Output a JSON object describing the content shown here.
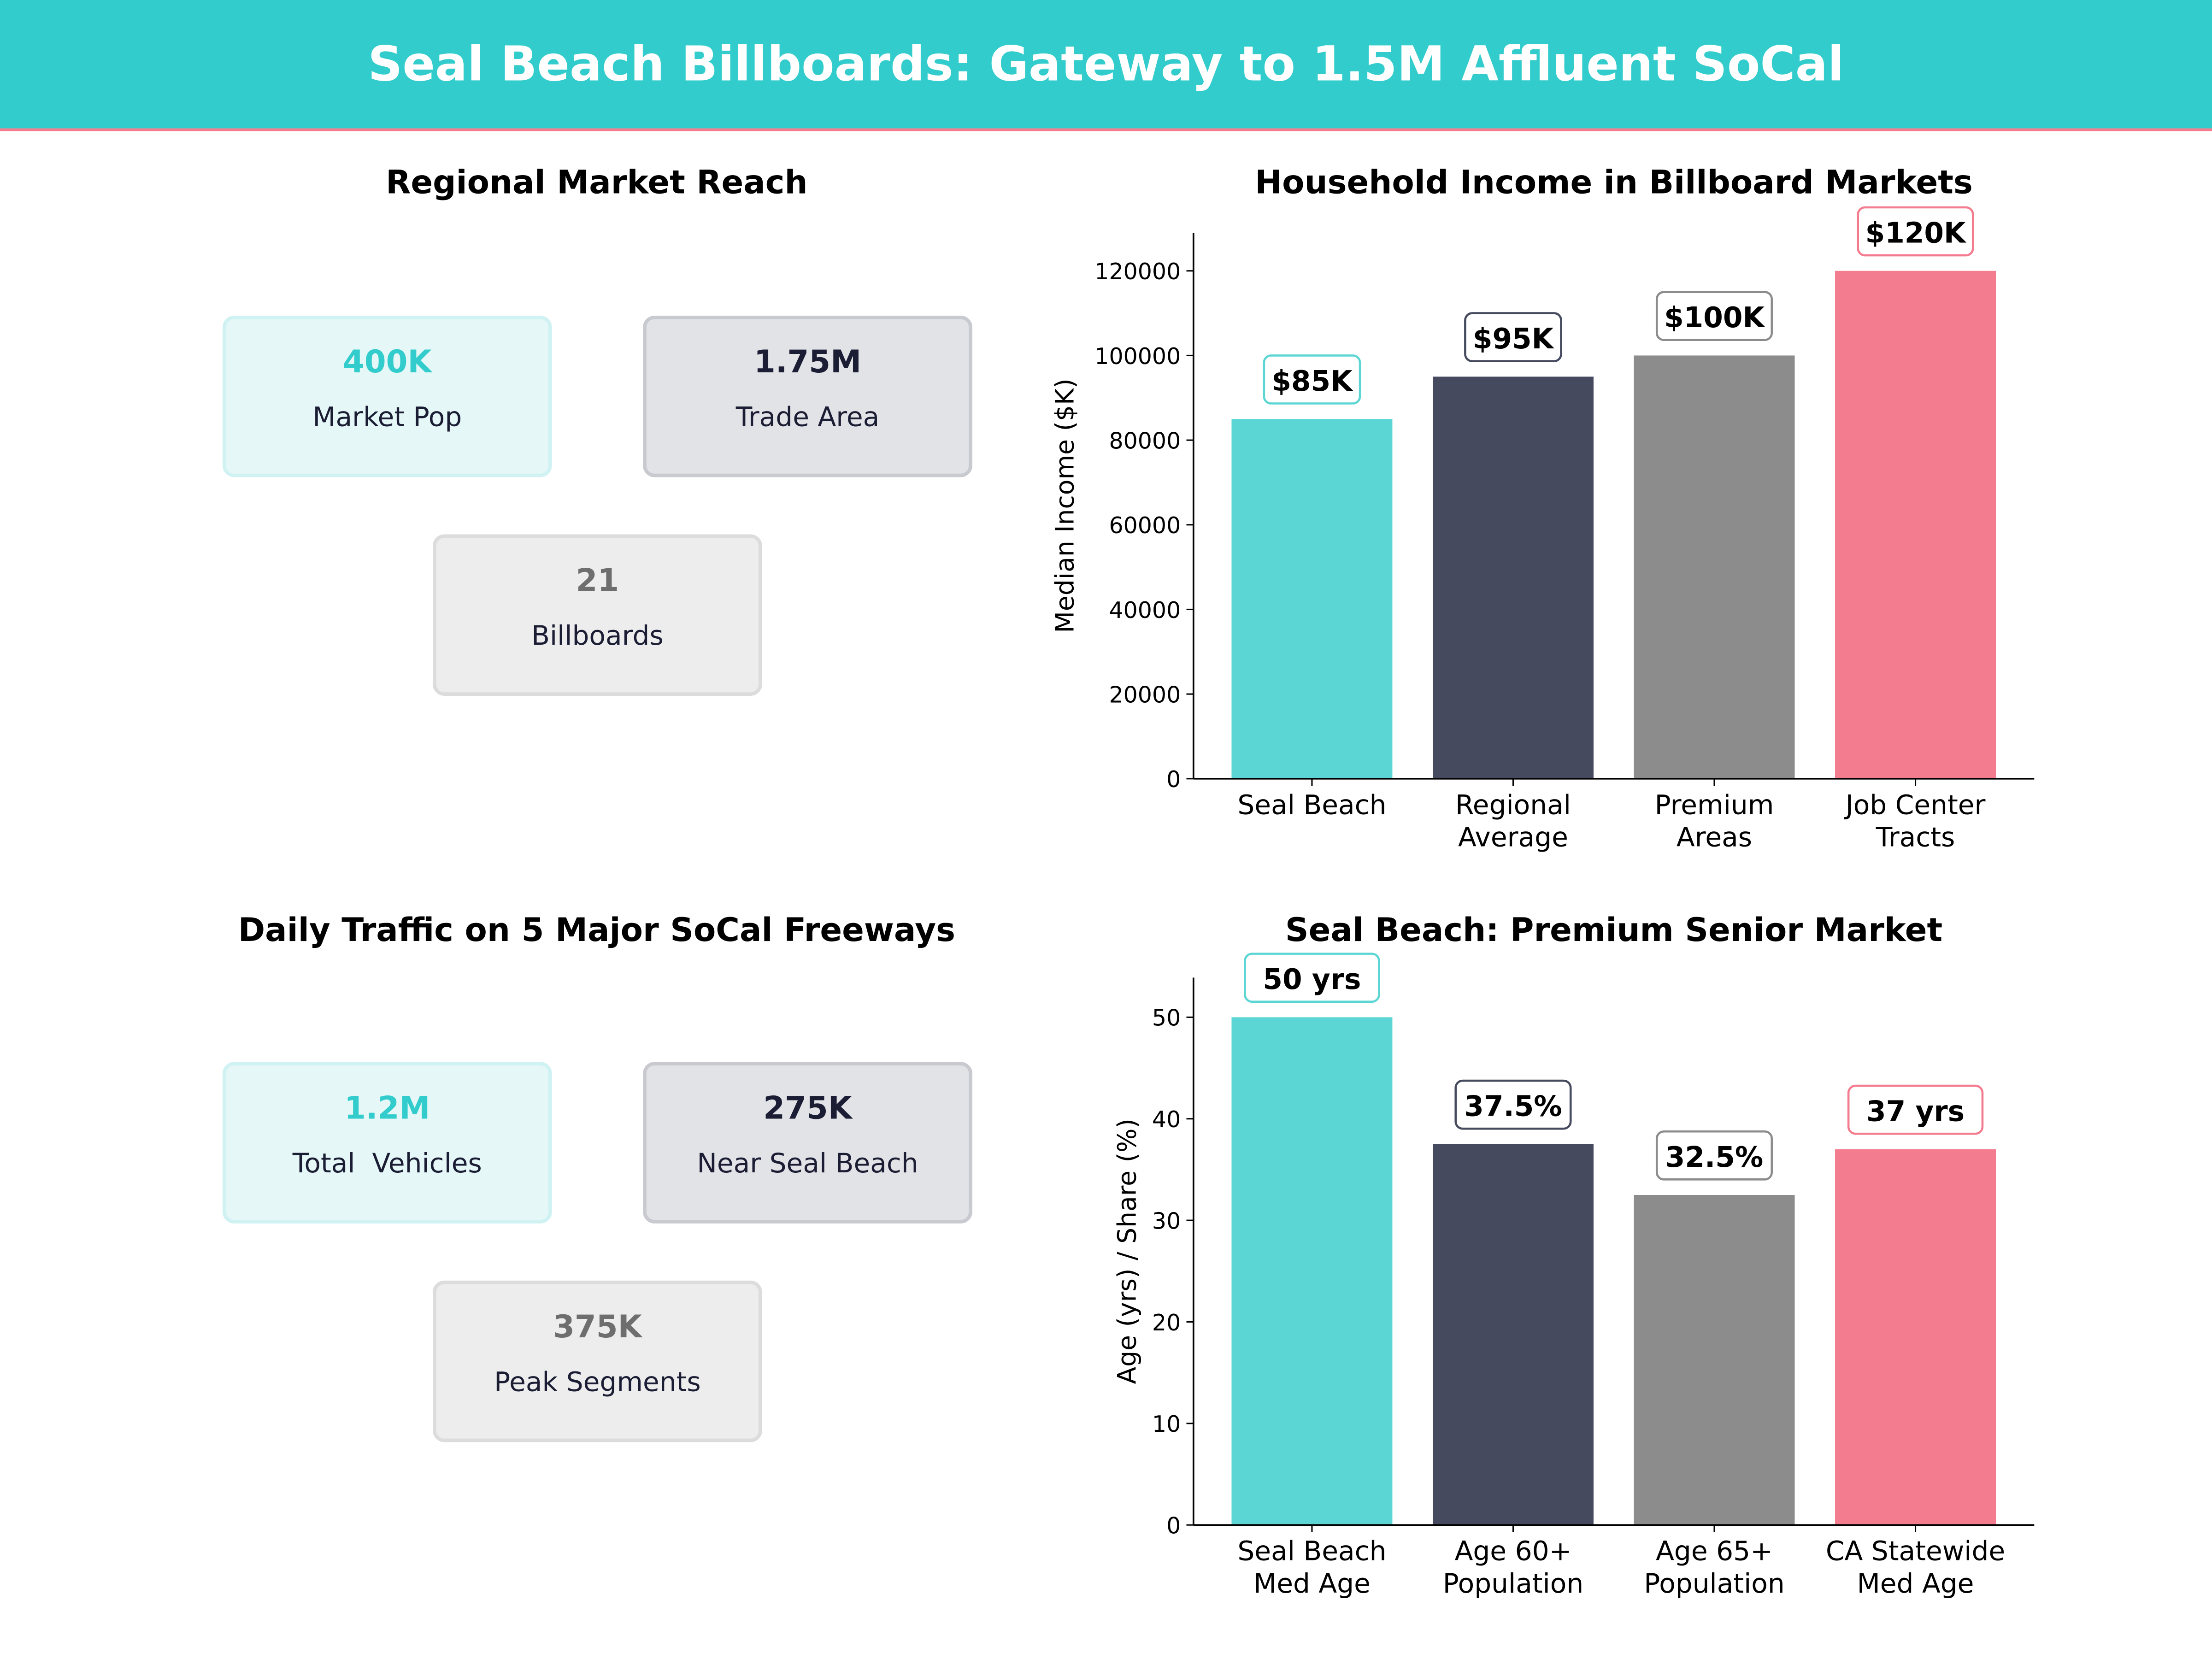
{
  "header": {
    "title": "Seal Beach Billboards: Gateway to 1.5M Affluent SoCal",
    "bg_color": "#33CCCC",
    "accent_line": "#F47C8F"
  },
  "reach": {
    "title": "Regional Market Reach",
    "cards": [
      {
        "value": "400K",
        "label": "Market Pop",
        "value_color": "#33CCCC"
      },
      {
        "value": "1.75M",
        "label": "Trade Area",
        "value_color": "#1A1D33"
      },
      {
        "value": "21",
        "label": "Billboards",
        "value_color": "#6E6E6E"
      }
    ]
  },
  "traffic": {
    "title": "Daily Traffic on 5 Major SoCal Freeways",
    "cards": [
      {
        "value": "1.2M",
        "label": "Total  Vehicles",
        "value_color": "#33CCCC"
      },
      {
        "value": "275K",
        "label": "Near Seal Beach",
        "value_color": "#1A1D33"
      },
      {
        "value": "375K",
        "label": "Peak Segments",
        "value_color": "#6E6E6E"
      }
    ]
  },
  "chart_data": [
    {
      "type": "bar",
      "title": "Household Income in Billboard Markets",
      "xlabel": "",
      "ylabel": "Median Income ($K)",
      "categories": [
        "Seal Beach",
        "Regional\nAverage",
        "Premium\nAreas",
        "Job Center\nTracts"
      ],
      "values": [
        85000,
        95000,
        100000,
        120000
      ],
      "data_labels": [
        "$85K",
        "$95K",
        "$100K",
        "$120K"
      ],
      "colors": [
        "#5CD6D4",
        "#464A5E",
        "#8C8C8C",
        "#F47C8F"
      ],
      "ylim": [
        0,
        129000
      ],
      "yticks": [
        0,
        20000,
        40000,
        60000,
        80000,
        100000,
        120000
      ],
      "grid": false
    },
    {
      "type": "bar",
      "title": "Seal Beach: Premium Senior Market",
      "xlabel": "",
      "ylabel": "Age (yrs) / Share (%)",
      "categories": [
        "Seal Beach\nMed Age",
        "Age 60+\nPopulation",
        "Age 65+\nPopulation",
        "CA Statewide\nMed Age"
      ],
      "values": [
        50,
        37.5,
        32.5,
        37
      ],
      "data_labels": [
        "50 yrs",
        "37.5%",
        "32.5%",
        "37 yrs"
      ],
      "colors": [
        "#5CD6D4",
        "#464A5E",
        "#8C8C8C",
        "#F47C8F"
      ],
      "ylim": [
        0,
        53.9
      ],
      "yticks": [
        0,
        10,
        20,
        30,
        40,
        50
      ],
      "grid": false
    }
  ]
}
